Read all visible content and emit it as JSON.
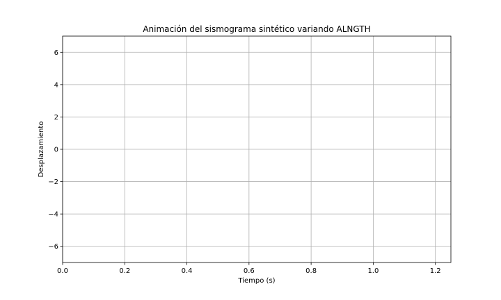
{
  "chart_data": {
    "type": "line",
    "title": "Animación del sismograma sintético variando ALNGTH",
    "xlabel": "Tiempo (s)",
    "ylabel": "Desplazamiento",
    "xlim": [
      0.0,
      1.25
    ],
    "ylim": [
      -7.0,
      7.0
    ],
    "xticks": [
      0.0,
      0.2,
      0.4,
      0.6,
      0.8,
      1.0,
      1.2
    ],
    "xtick_labels": [
      "0.0",
      "0.2",
      "0.4",
      "0.6",
      "0.8",
      "1.0",
      "1.2"
    ],
    "yticks": [
      -6,
      -4,
      -2,
      0,
      2,
      4,
      6
    ],
    "ytick_labels": [
      "−6",
      "−4",
      "−2",
      "0",
      "2",
      "4",
      "6"
    ],
    "grid": true,
    "series": []
  }
}
